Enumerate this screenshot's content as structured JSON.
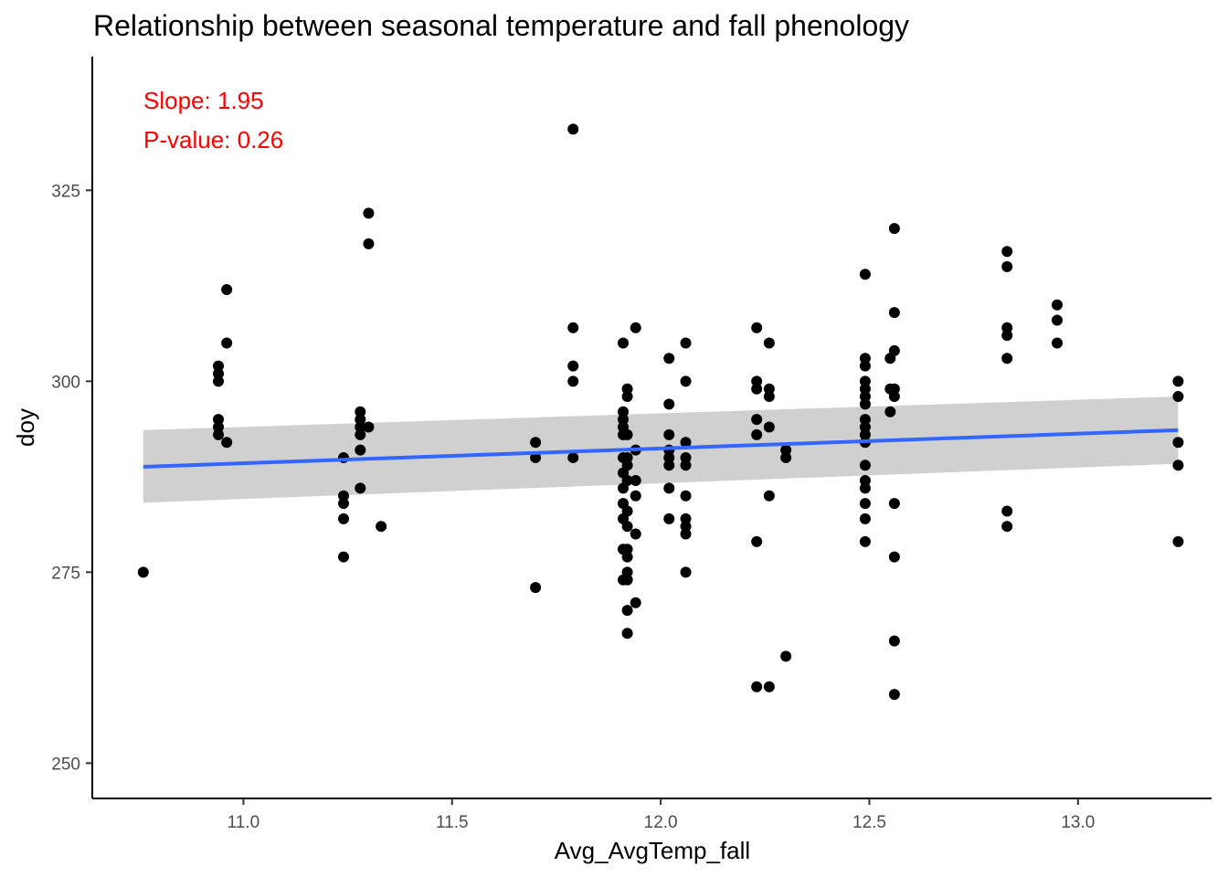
{
  "chart_data": {
    "type": "scatter",
    "title": "Relationship between seasonal temperature and fall phenology",
    "xlabel": "Avg_AvgTemp_fall",
    "ylabel": "doy",
    "xlim": [
      10.64,
      13.32
    ],
    "ylim": [
      245.5,
      342.5
    ],
    "x_ticks": [
      11.0,
      11.5,
      12.0,
      12.5,
      13.0
    ],
    "x_tick_labels": [
      "11.0",
      "11.5",
      "12.0",
      "12.5",
      "13.0"
    ],
    "y_ticks": [
      250,
      275,
      300,
      325
    ],
    "y_tick_labels": [
      "250",
      "275",
      "300",
      "325"
    ],
    "grid": false,
    "legend": "none",
    "colors": {
      "points": "#000000",
      "fit_line": "#3366FF",
      "ribbon": "#c8c8c8",
      "annotation": "#ff0000"
    },
    "annotations": [
      "Slope: 1.95",
      "P-value: 0.26"
    ],
    "fit": {
      "x": [
        10.76,
        13.24
      ],
      "y": [
        288.8,
        293.6
      ],
      "ci_upper": [
        293.6,
        298.0
      ],
      "ci_lower": [
        284.1,
        289.2
      ]
    },
    "points": [
      {
        "x": 10.76,
        "y": 275
      },
      {
        "x": 10.94,
        "y": 302
      },
      {
        "x": 10.94,
        "y": 301
      },
      {
        "x": 10.94,
        "y": 300
      },
      {
        "x": 10.94,
        "y": 295
      },
      {
        "x": 10.94,
        "y": 294
      },
      {
        "x": 10.94,
        "y": 293
      },
      {
        "x": 10.96,
        "y": 312
      },
      {
        "x": 10.96,
        "y": 305
      },
      {
        "x": 10.96,
        "y": 292
      },
      {
        "x": 11.24,
        "y": 290
      },
      {
        "x": 11.24,
        "y": 285
      },
      {
        "x": 11.24,
        "y": 284
      },
      {
        "x": 11.24,
        "y": 282
      },
      {
        "x": 11.24,
        "y": 277
      },
      {
        "x": 11.28,
        "y": 296
      },
      {
        "x": 11.28,
        "y": 295
      },
      {
        "x": 11.28,
        "y": 294
      },
      {
        "x": 11.28,
        "y": 293
      },
      {
        "x": 11.28,
        "y": 291
      },
      {
        "x": 11.28,
        "y": 286
      },
      {
        "x": 11.3,
        "y": 322
      },
      {
        "x": 11.3,
        "y": 318
      },
      {
        "x": 11.3,
        "y": 294
      },
      {
        "x": 11.33,
        "y": 281
      },
      {
        "x": 11.7,
        "y": 292
      },
      {
        "x": 11.7,
        "y": 290
      },
      {
        "x": 11.7,
        "y": 273
      },
      {
        "x": 11.79,
        "y": 333
      },
      {
        "x": 11.79,
        "y": 307
      },
      {
        "x": 11.79,
        "y": 302
      },
      {
        "x": 11.79,
        "y": 300
      },
      {
        "x": 11.79,
        "y": 290
      },
      {
        "x": 11.91,
        "y": 305
      },
      {
        "x": 11.91,
        "y": 296
      },
      {
        "x": 11.91,
        "y": 295
      },
      {
        "x": 11.91,
        "y": 294
      },
      {
        "x": 11.91,
        "y": 293
      },
      {
        "x": 11.91,
        "y": 290
      },
      {
        "x": 11.91,
        "y": 288
      },
      {
        "x": 11.91,
        "y": 286
      },
      {
        "x": 11.91,
        "y": 284
      },
      {
        "x": 11.91,
        "y": 282
      },
      {
        "x": 11.91,
        "y": 278
      },
      {
        "x": 11.91,
        "y": 274
      },
      {
        "x": 11.92,
        "y": 299
      },
      {
        "x": 11.92,
        "y": 298
      },
      {
        "x": 11.92,
        "y": 293
      },
      {
        "x": 11.92,
        "y": 290
      },
      {
        "x": 11.92,
        "y": 289
      },
      {
        "x": 11.92,
        "y": 287
      },
      {
        "x": 11.92,
        "y": 283
      },
      {
        "x": 11.92,
        "y": 281
      },
      {
        "x": 11.92,
        "y": 278
      },
      {
        "x": 11.92,
        "y": 277
      },
      {
        "x": 11.92,
        "y": 275
      },
      {
        "x": 11.92,
        "y": 274
      },
      {
        "x": 11.92,
        "y": 270
      },
      {
        "x": 11.92,
        "y": 267
      },
      {
        "x": 11.94,
        "y": 307
      },
      {
        "x": 11.94,
        "y": 291
      },
      {
        "x": 11.94,
        "y": 287
      },
      {
        "x": 11.94,
        "y": 285
      },
      {
        "x": 11.94,
        "y": 280
      },
      {
        "x": 11.94,
        "y": 271
      },
      {
        "x": 12.02,
        "y": 303
      },
      {
        "x": 12.02,
        "y": 297
      },
      {
        "x": 12.02,
        "y": 293
      },
      {
        "x": 12.02,
        "y": 291
      },
      {
        "x": 12.02,
        "y": 290
      },
      {
        "x": 12.02,
        "y": 289
      },
      {
        "x": 12.02,
        "y": 286
      },
      {
        "x": 12.02,
        "y": 282
      },
      {
        "x": 12.06,
        "y": 305
      },
      {
        "x": 12.06,
        "y": 300
      },
      {
        "x": 12.06,
        "y": 292
      },
      {
        "x": 12.06,
        "y": 290
      },
      {
        "x": 12.06,
        "y": 289
      },
      {
        "x": 12.06,
        "y": 285
      },
      {
        "x": 12.06,
        "y": 282
      },
      {
        "x": 12.06,
        "y": 281
      },
      {
        "x": 12.06,
        "y": 280
      },
      {
        "x": 12.06,
        "y": 275
      },
      {
        "x": 12.23,
        "y": 307
      },
      {
        "x": 12.23,
        "y": 300
      },
      {
        "x": 12.23,
        "y": 299
      },
      {
        "x": 12.23,
        "y": 295
      },
      {
        "x": 12.23,
        "y": 293
      },
      {
        "x": 12.23,
        "y": 279
      },
      {
        "x": 12.23,
        "y": 260
      },
      {
        "x": 12.26,
        "y": 305
      },
      {
        "x": 12.26,
        "y": 299
      },
      {
        "x": 12.26,
        "y": 298
      },
      {
        "x": 12.26,
        "y": 294
      },
      {
        "x": 12.26,
        "y": 285
      },
      {
        "x": 12.26,
        "y": 260
      },
      {
        "x": 12.3,
        "y": 291
      },
      {
        "x": 12.3,
        "y": 290
      },
      {
        "x": 12.3,
        "y": 264
      },
      {
        "x": 12.49,
        "y": 314
      },
      {
        "x": 12.49,
        "y": 303
      },
      {
        "x": 12.49,
        "y": 302
      },
      {
        "x": 12.49,
        "y": 300
      },
      {
        "x": 12.49,
        "y": 299
      },
      {
        "x": 12.49,
        "y": 298
      },
      {
        "x": 12.49,
        "y": 297
      },
      {
        "x": 12.49,
        "y": 295
      },
      {
        "x": 12.49,
        "y": 294
      },
      {
        "x": 12.49,
        "y": 293
      },
      {
        "x": 12.49,
        "y": 292
      },
      {
        "x": 12.49,
        "y": 289
      },
      {
        "x": 12.49,
        "y": 287
      },
      {
        "x": 12.49,
        "y": 286
      },
      {
        "x": 12.49,
        "y": 284
      },
      {
        "x": 12.49,
        "y": 282
      },
      {
        "x": 12.49,
        "y": 279
      },
      {
        "x": 12.55,
        "y": 303
      },
      {
        "x": 12.55,
        "y": 299
      },
      {
        "x": 12.55,
        "y": 296
      },
      {
        "x": 12.56,
        "y": 320
      },
      {
        "x": 12.56,
        "y": 309
      },
      {
        "x": 12.56,
        "y": 304
      },
      {
        "x": 12.56,
        "y": 299
      },
      {
        "x": 12.56,
        "y": 298
      },
      {
        "x": 12.56,
        "y": 284
      },
      {
        "x": 12.56,
        "y": 277
      },
      {
        "x": 12.56,
        "y": 266
      },
      {
        "x": 12.56,
        "y": 259
      },
      {
        "x": 12.83,
        "y": 317
      },
      {
        "x": 12.83,
        "y": 315
      },
      {
        "x": 12.83,
        "y": 307
      },
      {
        "x": 12.83,
        "y": 306
      },
      {
        "x": 12.83,
        "y": 303
      },
      {
        "x": 12.83,
        "y": 283
      },
      {
        "x": 12.83,
        "y": 281
      },
      {
        "x": 12.95,
        "y": 310
      },
      {
        "x": 12.95,
        "y": 308
      },
      {
        "x": 12.95,
        "y": 305
      },
      {
        "x": 13.24,
        "y": 300
      },
      {
        "x": 13.24,
        "y": 298
      },
      {
        "x": 13.24,
        "y": 292
      },
      {
        "x": 13.24,
        "y": 289
      },
      {
        "x": 13.24,
        "y": 279
      }
    ]
  }
}
